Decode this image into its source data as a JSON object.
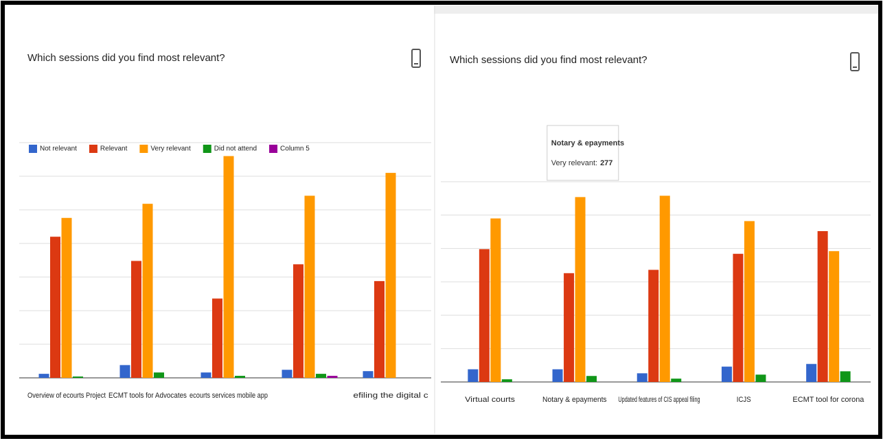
{
  "chart_data": [
    {
      "type": "bar",
      "title": "Which sessions did you find most relevant?",
      "categories": [
        "Overview of ecourts Project",
        "ECMT tools for Advocates",
        "ecourts services mobile app",
        null,
        "efiling the digital c"
      ],
      "series": [
        {
          "name": "Not relevant",
          "color": "#3366cc",
          "values": [
            6,
            19,
            8,
            12,
            10
          ]
        },
        {
          "name": "Relevant",
          "color": "#dc3912",
          "values": [
            210,
            174,
            118,
            169,
            144
          ]
        },
        {
          "name": "Very relevant",
          "color": "#ff9900",
          "values": [
            238,
            259,
            330,
            271,
            305
          ]
        },
        {
          "name": "Did not attend",
          "color": "#109618",
          "values": [
            2,
            8,
            3,
            6,
            0
          ]
        },
        {
          "name": "Column 5",
          "color": "#990099",
          "values": [
            0,
            0,
            0,
            3,
            0
          ]
        }
      ],
      "ylim": [
        0,
        350
      ],
      "yticks": [
        0,
        50,
        100,
        150,
        200,
        250,
        300,
        350
      ],
      "grid": true,
      "legend": "top"
    },
    {
      "type": "bar",
      "title": "Which sessions did you find most relevant?",
      "categories": [
        "Virtual courts",
        "Notary & epayments",
        "Updated features of CIS   appeal filing",
        "ICJS",
        "ECMT tool for corona"
      ],
      "series": [
        {
          "color": "#3366cc",
          "values": [
            19,
            19,
            13,
            23,
            27
          ]
        },
        {
          "color": "#dc3912",
          "values": [
            199,
            163,
            168,
            192,
            226
          ]
        },
        {
          "color": "#ff9900",
          "values": [
            245,
            277,
            279,
            241,
            196
          ]
        },
        {
          "color": "#109618",
          "values": [
            4,
            9,
            5,
            11,
            16
          ]
        }
      ],
      "ylim": [
        0,
        300
      ],
      "yticks": [
        0,
        50,
        100,
        150,
        200,
        250,
        300
      ],
      "grid": true,
      "tooltip": {
        "title": "Notary & epayments",
        "label": "Very relevant:",
        "value": 277
      }
    }
  ]
}
